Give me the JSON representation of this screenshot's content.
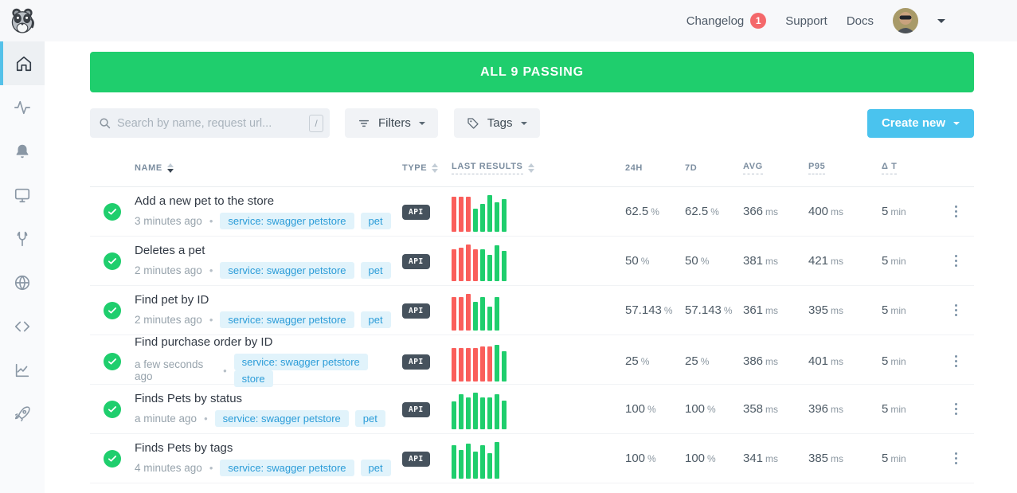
{
  "colors": {
    "green": "#1fce6d",
    "red": "#fa5e5b",
    "blue": "#4ac3ee",
    "tag_blue": "#2b9cd8",
    "badge_red": "#f4686a",
    "active_cyan": "#55c1e9"
  },
  "topbar": {
    "changelog": "Changelog",
    "changelog_badge": "1",
    "support": "Support",
    "docs": "Docs"
  },
  "sidebar": {
    "items": [
      {
        "icon": "home-icon",
        "active": true
      },
      {
        "icon": "activity-icon",
        "active": false
      },
      {
        "icon": "bell-icon",
        "active": false
      },
      {
        "icon": "monitor-icon",
        "active": false
      },
      {
        "icon": "wrench-icon",
        "active": false
      },
      {
        "icon": "globe-icon",
        "active": false
      },
      {
        "icon": "code-icon",
        "active": false
      },
      {
        "icon": "chart-icon",
        "active": false
      },
      {
        "icon": "rocket-icon",
        "active": false
      }
    ]
  },
  "banner": {
    "text": "ALL 9 PASSING"
  },
  "toolbar": {
    "search_placeholder": "Search by name, request url...",
    "search_shortcut": "/",
    "filters": "Filters",
    "tags": "Tags",
    "create_new": "Create new"
  },
  "table": {
    "headers": {
      "name": "NAME",
      "type": "TYPE",
      "last_results": "LAST RESULTS",
      "h24": "24H",
      "d7": "7D",
      "avg": "AVG",
      "p95": "P95",
      "dt": "Δ T"
    },
    "rows": [
      {
        "status": "passing",
        "name": "Add a new pet to the store",
        "time": "3 minutes ago",
        "tags": [
          "service: swagger petstore",
          "pet"
        ],
        "type": "API",
        "results": [
          {
            "s": "fail",
            "h": 44
          },
          {
            "s": "fail",
            "h": 44
          },
          {
            "s": "fail",
            "h": 44
          },
          {
            "s": "pass",
            "h": 29
          },
          {
            "s": "pass",
            "h": 35
          },
          {
            "s": "pass",
            "h": 46
          },
          {
            "s": "pass",
            "h": 37
          },
          {
            "s": "pass",
            "h": 41
          }
        ],
        "h24": {
          "value": "62.5",
          "unit": "%"
        },
        "d7": {
          "value": "62.5",
          "unit": "%"
        },
        "avg": {
          "value": "366",
          "unit": "ms"
        },
        "p95": {
          "value": "400",
          "unit": "ms"
        },
        "dt": {
          "value": "5",
          "unit": "min"
        }
      },
      {
        "status": "passing",
        "name": "Deletes a pet",
        "time": "2 minutes ago",
        "tags": [
          "service: swagger petstore",
          "pet"
        ],
        "type": "API",
        "results": [
          {
            "s": "fail",
            "h": 40
          },
          {
            "s": "fail",
            "h": 42
          },
          {
            "s": "fail",
            "h": 46
          },
          {
            "s": "fail",
            "h": 40
          },
          {
            "s": "pass",
            "h": 40
          },
          {
            "s": "pass",
            "h": 33
          },
          {
            "s": "pass",
            "h": 45
          },
          {
            "s": "pass",
            "h": 38
          }
        ],
        "h24": {
          "value": "50",
          "unit": "%"
        },
        "d7": {
          "value": "50",
          "unit": "%"
        },
        "avg": {
          "value": "381",
          "unit": "ms"
        },
        "p95": {
          "value": "421",
          "unit": "ms"
        },
        "dt": {
          "value": "5",
          "unit": "min"
        }
      },
      {
        "status": "passing",
        "name": "Find pet by ID",
        "time": "2 minutes ago",
        "tags": [
          "service: swagger petstore",
          "pet"
        ],
        "type": "API",
        "results": [
          {
            "s": "fail",
            "h": 42
          },
          {
            "s": "fail",
            "h": 42
          },
          {
            "s": "fail",
            "h": 46
          },
          {
            "s": "pass",
            "h": 36
          },
          {
            "s": "pass",
            "h": 42
          },
          {
            "s": "pass",
            "h": 30
          },
          {
            "s": "pass",
            "h": 42
          }
        ],
        "h24": {
          "value": "57.143",
          "unit": "%"
        },
        "d7": {
          "value": "57.143",
          "unit": "%"
        },
        "avg": {
          "value": "361",
          "unit": "ms"
        },
        "p95": {
          "value": "395",
          "unit": "ms"
        },
        "dt": {
          "value": "5",
          "unit": "min"
        }
      },
      {
        "status": "passing",
        "name": "Find purchase order by ID",
        "time": "a few seconds ago",
        "tags": [
          "service: swagger petstore",
          "store"
        ],
        "type": "API",
        "results": [
          {
            "s": "fail",
            "h": 42
          },
          {
            "s": "fail",
            "h": 42
          },
          {
            "s": "fail",
            "h": 42
          },
          {
            "s": "fail",
            "h": 42
          },
          {
            "s": "fail",
            "h": 44
          },
          {
            "s": "fail",
            "h": 44
          },
          {
            "s": "pass",
            "h": 46
          },
          {
            "s": "pass",
            "h": 38
          }
        ],
        "h24": {
          "value": "25",
          "unit": "%"
        },
        "d7": {
          "value": "25",
          "unit": "%"
        },
        "avg": {
          "value": "386",
          "unit": "ms"
        },
        "p95": {
          "value": "401",
          "unit": "ms"
        },
        "dt": {
          "value": "5",
          "unit": "min"
        }
      },
      {
        "status": "passing",
        "name": "Finds Pets by status",
        "time": "a minute ago",
        "tags": [
          "service: swagger petstore",
          "pet"
        ],
        "type": "API",
        "results": [
          {
            "s": "pass",
            "h": 35
          },
          {
            "s": "pass",
            "h": 44
          },
          {
            "s": "pass",
            "h": 40
          },
          {
            "s": "pass",
            "h": 46
          },
          {
            "s": "pass",
            "h": 40
          },
          {
            "s": "pass",
            "h": 40
          },
          {
            "s": "pass",
            "h": 44
          },
          {
            "s": "pass",
            "h": 36
          }
        ],
        "h24": {
          "value": "100",
          "unit": "%"
        },
        "d7": {
          "value": "100",
          "unit": "%"
        },
        "avg": {
          "value": "358",
          "unit": "ms"
        },
        "p95": {
          "value": "396",
          "unit": "ms"
        },
        "dt": {
          "value": "5",
          "unit": "min"
        }
      },
      {
        "status": "passing",
        "name": "Finds Pets by tags",
        "time": "4 minutes ago",
        "tags": [
          "service: swagger petstore",
          "pet"
        ],
        "type": "API",
        "results": [
          {
            "s": "pass",
            "h": 42
          },
          {
            "s": "pass",
            "h": 36
          },
          {
            "s": "pass",
            "h": 44
          },
          {
            "s": "pass",
            "h": 34
          },
          {
            "s": "pass",
            "h": 42
          },
          {
            "s": "pass",
            "h": 32
          },
          {
            "s": "pass",
            "h": 46
          }
        ],
        "h24": {
          "value": "100",
          "unit": "%"
        },
        "d7": {
          "value": "100",
          "unit": "%"
        },
        "avg": {
          "value": "341",
          "unit": "ms"
        },
        "p95": {
          "value": "385",
          "unit": "ms"
        },
        "dt": {
          "value": "5",
          "unit": "min"
        }
      }
    ]
  }
}
